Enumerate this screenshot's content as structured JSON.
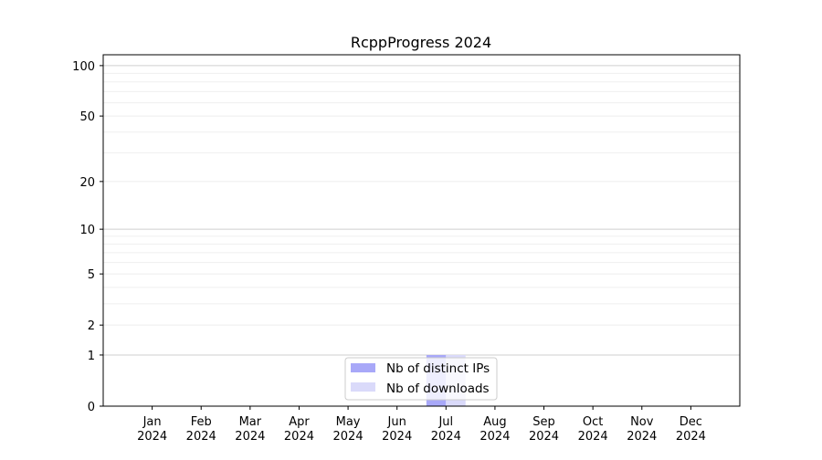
{
  "chart_data": {
    "type": "bar",
    "title": "RcppProgress 2024",
    "xlabel": "",
    "ylabel": "",
    "y_scale": "log(1+y)",
    "ylim": [
      0,
      116
    ],
    "y_ticks": [
      0,
      1,
      2,
      5,
      10,
      20,
      50,
      100
    ],
    "y_tick_labels": [
      "0",
      "1",
      "2",
      "5",
      "10",
      "20",
      "50",
      "100"
    ],
    "y_minor_grid": [
      3,
      4,
      6,
      7,
      8,
      9,
      30,
      40,
      60,
      70,
      80,
      90
    ],
    "grid": true,
    "categories": [
      [
        "Jan",
        "2024"
      ],
      [
        "Feb",
        "2024"
      ],
      [
        "Mar",
        "2024"
      ],
      [
        "Apr",
        "2024"
      ],
      [
        "May",
        "2024"
      ],
      [
        "Jun",
        "2024"
      ],
      [
        "Jul",
        "2024"
      ],
      [
        "Aug",
        "2024"
      ],
      [
        "Sep",
        "2024"
      ],
      [
        "Oct",
        "2024"
      ],
      [
        "Nov",
        "2024"
      ],
      [
        "Dec",
        "2024"
      ]
    ],
    "series": [
      {
        "name": "Nb of distinct IPs",
        "color": "#a8a8f8",
        "values": [
          0,
          0,
          0,
          0,
          0,
          0,
          1,
          0,
          0,
          0,
          0,
          0
        ]
      },
      {
        "name": "Nb of downloads",
        "color": "#dadafa",
        "values": [
          0,
          0,
          0,
          0,
          0,
          0,
          1,
          0,
          0,
          0,
          0,
          0
        ]
      }
    ],
    "legend_position": "lower-center"
  }
}
